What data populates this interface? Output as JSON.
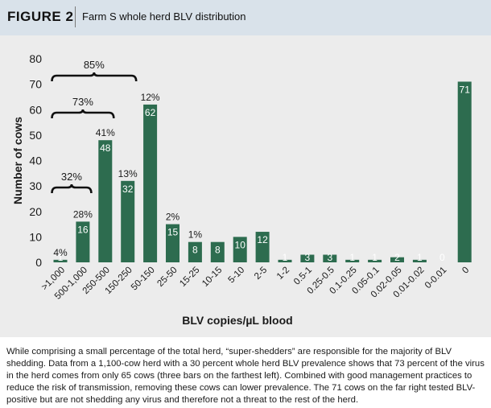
{
  "figure": {
    "label": "FIGURE 2",
    "title": "Farm S whole herd BLV distribution"
  },
  "caption": "While comprising a small percentage of the total herd, “super-shedders” are responsible for the majority of BLV shedding. Data from a 1,100-cow herd with a 30 percent whole herd BLV prevalence shows that 73 percent of the virus in the herd comes from only 65 cows (three bars on the farthest left). Combined with good management practices to reduce the risk of transmission, removing these cows can lower prevalence. The 71 cows on the far right tested BLV-positive but are not shedding any virus and therefore not a threat to the rest of the herd.",
  "chart_data": {
    "type": "bar",
    "title": "",
    "xlabel": "BLV copies/µL blood",
    "ylabel": "Number of cows",
    "ylim": [
      0,
      80
    ],
    "yticks": [
      0,
      10,
      20,
      30,
      40,
      50,
      60,
      70,
      80
    ],
    "grid": false,
    "bar_color": "#2d6c4f",
    "categories": [
      ">1,000",
      "500-1,000",
      "250-500",
      "150-250",
      "50-150",
      "25-50",
      "15-25",
      "10-15",
      "5-10",
      "2-5",
      "1-2",
      "0.5-1",
      "0.25-0.5",
      "0.1-0.25",
      "0.05-0.1",
      "0.02-0.05",
      "0.01-0.02",
      "0-0.01",
      "0"
    ],
    "values": [
      1,
      16,
      48,
      32,
      62,
      15,
      8,
      8,
      10,
      12,
      1,
      3,
      3,
      1,
      1,
      2,
      1,
      0,
      71
    ],
    "percent_labels": [
      "4%",
      "28%",
      "41%",
      "13%",
      "12%",
      "2%",
      "1%",
      "",
      "",
      "",
      "",
      "",
      "",
      "",
      "",
      "",
      "",
      "",
      ""
    ],
    "brackets": [
      {
        "label": "32%",
        "from": ">1,000",
        "to": "500-1,000"
      },
      {
        "label": "73%",
        "from": ">1,000",
        "to": "250-500"
      },
      {
        "label": "85%",
        "from": ">1,000",
        "to": "150-250"
      }
    ]
  }
}
